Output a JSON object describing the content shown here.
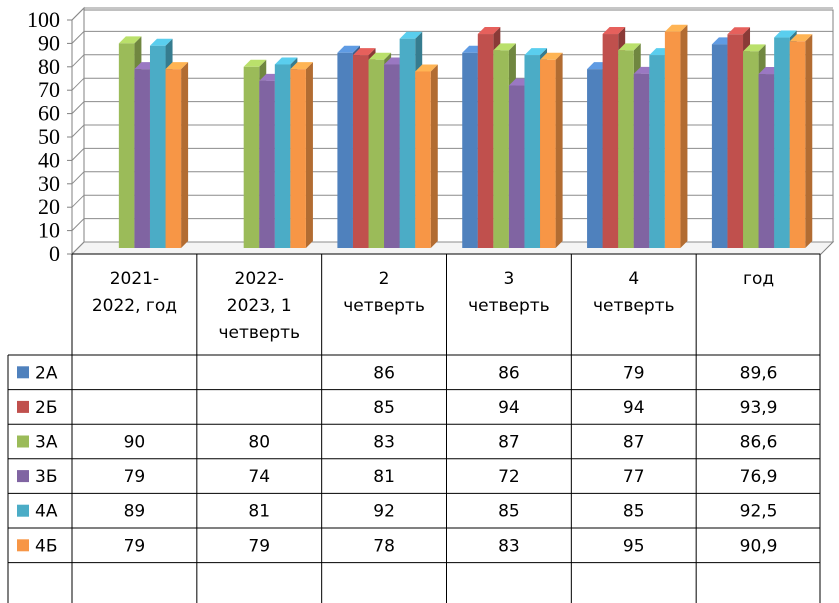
{
  "chart_data": {
    "type": "bar",
    "title": "",
    "xlabel": "",
    "ylabel": "",
    "ylim": [
      0,
      100
    ],
    "yticks": [
      "0",
      "10",
      "20",
      "30",
      "40",
      "50",
      "60",
      "70",
      "80",
      "90",
      "100"
    ],
    "grid": true,
    "style": "3d-clustered-column-with-data-table",
    "categories": [
      [
        "2021-",
        "2022, год"
      ],
      [
        "2022-",
        "2023, 1",
        "четверть"
      ],
      [
        "2",
        "четверть"
      ],
      [
        "3",
        "четверть"
      ],
      [
        "4",
        "четверть"
      ],
      [
        "год"
      ]
    ],
    "series": [
      {
        "name": "2А",
        "color": "#4F81BD",
        "values": [
          null,
          null,
          86,
          86,
          79,
          89.6
        ],
        "labels": [
          "",
          "",
          "86",
          "86",
          "79",
          "89,6"
        ]
      },
      {
        "name": "2Б",
        "color": "#C0504D",
        "values": [
          null,
          null,
          85,
          94,
          94,
          93.9
        ],
        "labels": [
          "",
          "",
          "85",
          "94",
          "94",
          "93,9"
        ]
      },
      {
        "name": "3А",
        "color": "#9BBB59",
        "values": [
          90,
          80,
          83,
          87,
          87,
          86.6
        ],
        "labels": [
          "90",
          "80",
          "83",
          "87",
          "87",
          "86,6"
        ]
      },
      {
        "name": "3Б",
        "color": "#8064A2",
        "values": [
          79,
          74,
          81,
          72,
          77,
          76.9
        ],
        "labels": [
          "79",
          "74",
          "81",
          "72",
          "77",
          "76,9"
        ]
      },
      {
        "name": "4А",
        "color": "#4BACC6",
        "values": [
          89,
          81,
          92,
          85,
          85,
          92.5
        ],
        "labels": [
          "89",
          "81",
          "92",
          "85",
          "85",
          "92,5"
        ]
      },
      {
        "name": "4Б",
        "color": "#F79646",
        "values": [
          79,
          79,
          78,
          83,
          95,
          90.9
        ],
        "labels": [
          "79",
          "79",
          "78",
          "83",
          "95",
          "90,9"
        ]
      }
    ]
  }
}
